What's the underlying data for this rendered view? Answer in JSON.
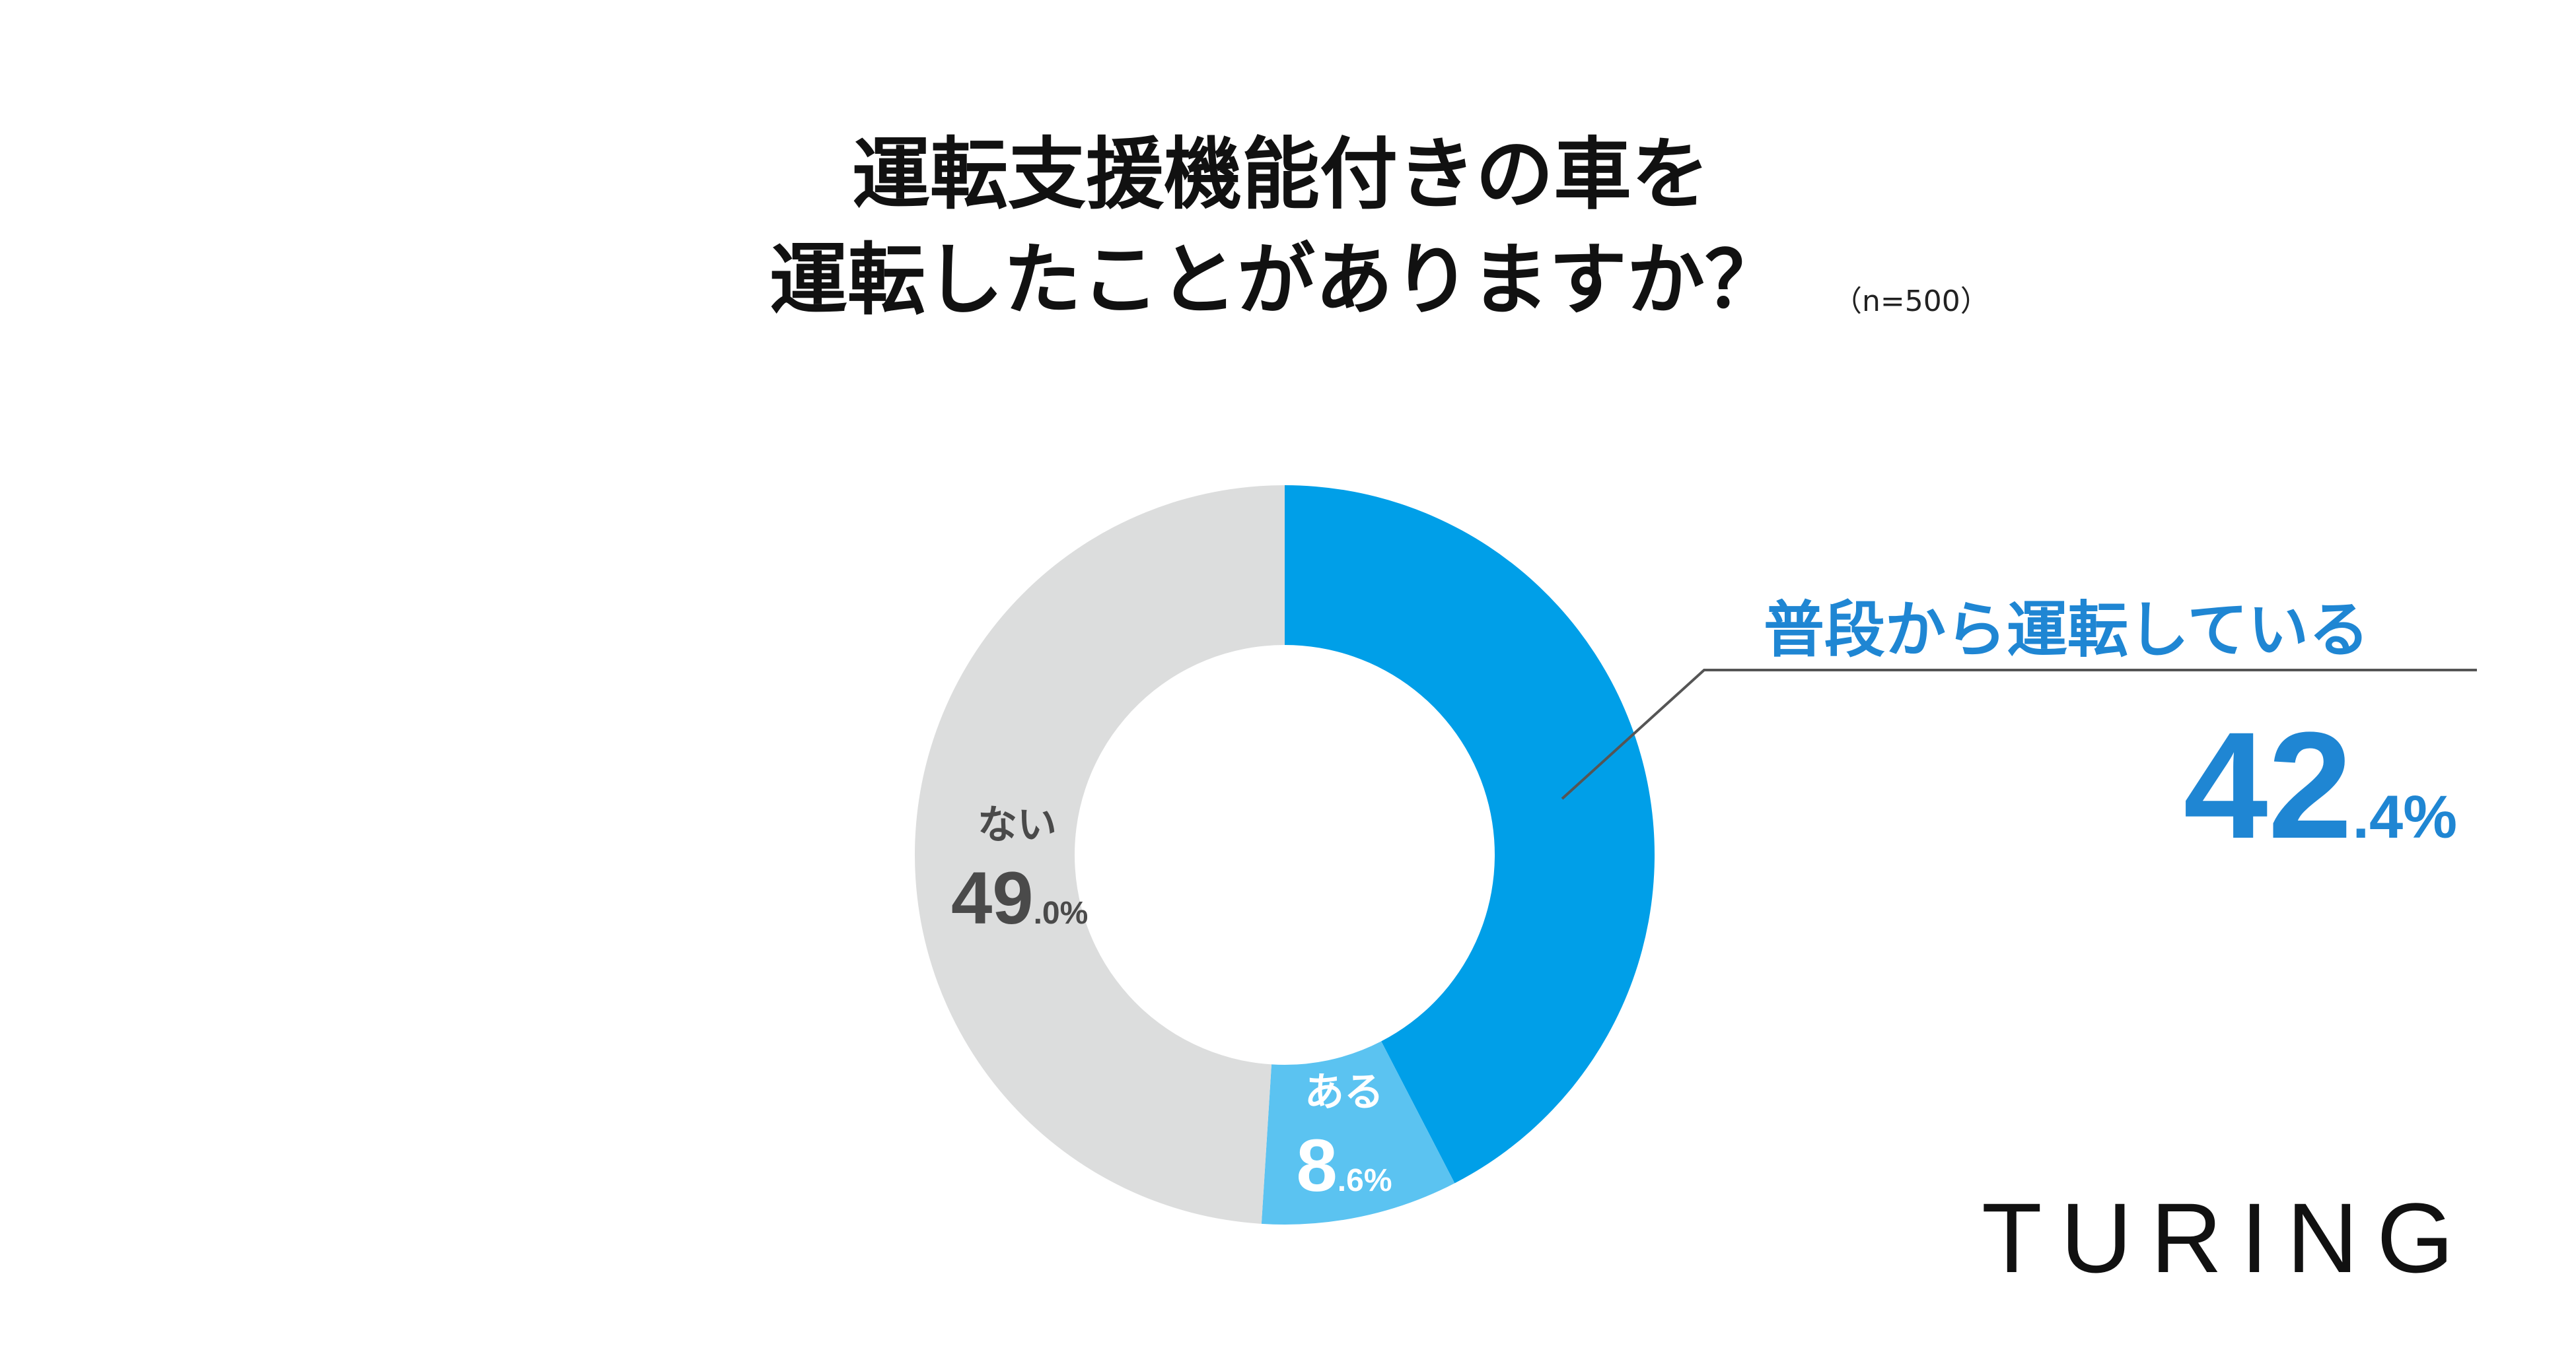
{
  "title": {
    "line1": "運転支援機能付きの車を",
    "line2": "運転したことがありますか？",
    "sample_size": "（n=500）"
  },
  "chart_data": {
    "type": "pie",
    "donut": true,
    "slices": [
      {
        "label": "普段から運転している",
        "value": 42.4,
        "value_int": "42",
        "value_dec": ".4%",
        "color": "#009fe8"
      },
      {
        "label": "ある",
        "value": 8.6,
        "value_int": "8",
        "value_dec": ".6%",
        "color": "#5bc3f1"
      },
      {
        "label": "ない",
        "value": 49.0,
        "value_int": "49",
        "value_dec": ".0%",
        "color": "#dcdddd"
      }
    ]
  },
  "brand": {
    "logo_text": "TURING"
  }
}
